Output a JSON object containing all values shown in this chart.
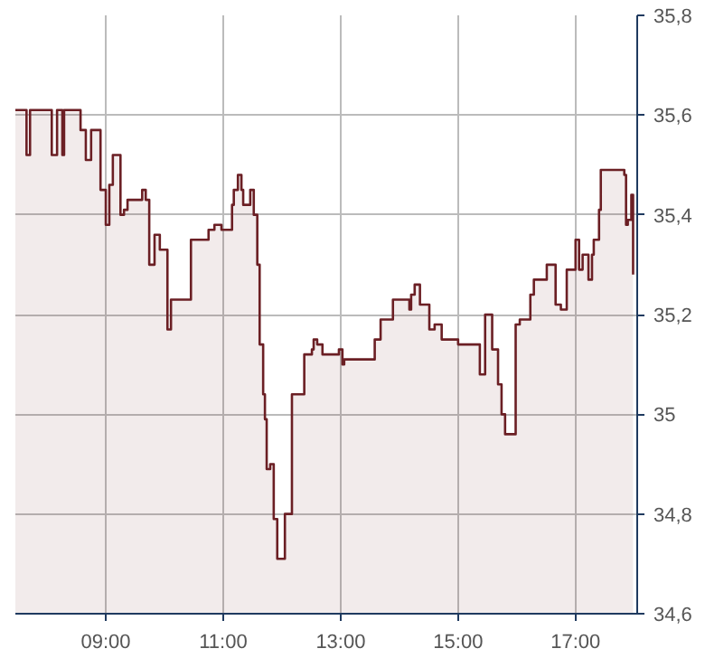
{
  "chart_data": {
    "type": "area",
    "x": [
      7.46,
      7.65,
      7.65,
      7.71,
      7.71,
      8.08,
      8.08,
      8.17,
      8.17,
      8.26,
      8.26,
      8.29,
      8.29,
      8.57,
      8.57,
      8.66,
      8.66,
      8.75,
      8.75,
      8.91,
      8.91,
      9.0,
      9.0,
      9.06,
      9.06,
      9.12,
      9.12,
      9.25,
      9.25,
      9.31,
      9.31,
      9.37,
      9.37,
      9.62,
      9.62,
      9.68,
      9.68,
      9.74,
      9.74,
      9.83,
      9.83,
      9.92,
      9.92,
      10.05,
      10.05,
      10.11,
      10.11,
      10.45,
      10.45,
      10.75,
      10.75,
      10.85,
      10.85,
      10.97,
      10.97,
      11.15,
      11.15,
      11.18,
      11.18,
      11.25,
      11.25,
      11.31,
      11.31,
      11.34,
      11.34,
      11.46,
      11.46,
      11.52,
      11.52,
      11.58,
      11.58,
      11.62,
      11.62,
      11.68,
      11.68,
      11.71,
      11.71,
      11.74,
      11.74,
      11.8,
      11.8,
      11.86,
      11.86,
      11.92,
      11.92,
      12.05,
      12.05,
      12.17,
      12.17,
      12.38,
      12.38,
      12.51,
      12.51,
      12.54,
      12.54,
      12.6,
      12.6,
      12.69,
      12.69,
      12.97,
      12.97,
      13.03,
      13.03,
      13.06,
      13.06,
      13.58,
      13.58,
      13.68,
      13.68,
      13.89,
      13.89,
      14.17,
      14.17,
      14.2,
      14.2,
      14.26,
      14.26,
      14.35,
      14.35,
      14.51,
      14.51,
      14.6,
      14.6,
      14.72,
      14.72,
      15.0,
      15.0,
      15.37,
      15.37,
      15.46,
      15.46,
      15.58,
      15.58,
      15.68,
      15.68,
      15.74,
      15.74,
      15.8,
      15.8,
      15.98,
      15.98,
      16.05,
      16.05,
      16.23,
      16.23,
      16.29,
      16.29,
      16.51,
      16.51,
      16.66,
      16.66,
      16.75,
      16.75,
      16.85,
      16.85,
      17.0,
      17.0,
      17.06,
      17.06,
      17.12,
      17.12,
      17.22,
      17.22,
      17.28,
      17.28,
      17.31,
      17.31,
      17.4,
      17.4,
      17.43,
      17.43,
      17.83,
      17.83,
      17.86,
      17.86,
      17.89,
      17.89,
      17.95,
      17.95,
      17.98,
      17.98
    ],
    "series": [
      {
        "color": "#6b1f24",
        "values": [
          35.61,
          35.61,
          35.52,
          35.52,
          35.61,
          35.61,
          35.52,
          35.52,
          35.61,
          35.61,
          35.52,
          35.52,
          35.61,
          35.61,
          35.57,
          35.57,
          35.51,
          35.51,
          35.57,
          35.57,
          35.45,
          35.45,
          35.38,
          35.38,
          35.46,
          35.46,
          35.52,
          35.52,
          35.4,
          35.4,
          35.41,
          35.41,
          35.43,
          35.43,
          35.45,
          35.45,
          35.43,
          35.43,
          35.3,
          35.3,
          35.36,
          35.36,
          35.33,
          35.33,
          35.17,
          35.17,
          35.23,
          35.23,
          35.35,
          35.35,
          35.37,
          35.37,
          35.38,
          35.38,
          35.37,
          35.37,
          35.42,
          35.42,
          35.45,
          35.45,
          35.48,
          35.48,
          35.45,
          35.45,
          35.42,
          35.42,
          35.45,
          35.45,
          35.4,
          35.4,
          35.3,
          35.3,
          35.14,
          35.14,
          35.04,
          35.04,
          34.99,
          34.99,
          34.89,
          34.89,
          34.9,
          34.9,
          34.79,
          34.79,
          34.71,
          34.71,
          34.8,
          34.8,
          35.04,
          35.04,
          35.12,
          35.12,
          35.13,
          35.13,
          35.15,
          35.15,
          35.14,
          35.14,
          35.12,
          35.12,
          35.13,
          35.13,
          35.1,
          35.1,
          35.11,
          35.11,
          35.15,
          35.15,
          35.19,
          35.19,
          35.23,
          35.23,
          35.21,
          35.21,
          35.24,
          35.24,
          35.26,
          35.26,
          35.22,
          35.22,
          35.17,
          35.17,
          35.18,
          35.18,
          35.15,
          35.15,
          35.14,
          35.14,
          35.08,
          35.08,
          35.2,
          35.2,
          35.13,
          35.13,
          35.06,
          35.06,
          35.0,
          35.0,
          34.96,
          34.96,
          35.18,
          35.18,
          35.19,
          35.19,
          35.24,
          35.24,
          35.27,
          35.27,
          35.3,
          35.3,
          35.22,
          35.22,
          35.21,
          35.21,
          35.29,
          35.29,
          35.35,
          35.35,
          35.29,
          35.29,
          35.32,
          35.32,
          35.27,
          35.27,
          35.32,
          35.32,
          35.35,
          35.35,
          35.41,
          35.41,
          35.49,
          35.49,
          35.48,
          35.48,
          35.38,
          35.38,
          35.39,
          35.39,
          35.44,
          35.44,
          35.28
        ]
      }
    ],
    "xlim": [
      7.46,
      18.05
    ],
    "xticks": [
      {
        "value": 9,
        "label": "09:00"
      },
      {
        "value": 11,
        "label": "11:00"
      },
      {
        "value": 13,
        "label": "13:00"
      },
      {
        "value": 15,
        "label": "15:00"
      },
      {
        "value": 17,
        "label": "17:00"
      }
    ],
    "ylim": [
      34.6,
      35.8
    ],
    "yticks": [
      {
        "value": 34.6,
        "label": "34,6"
      },
      {
        "value": 34.8,
        "label": "34,8"
      },
      35,
      {
        "value": 35.2,
        "label": "35,2"
      },
      {
        "value": 35.4,
        "label": "35,4"
      },
      {
        "value": 35.6,
        "label": "35,6"
      },
      {
        "value": 35.8,
        "label": "35,8"
      }
    ],
    "grid": true,
    "line_style": "solid"
  }
}
